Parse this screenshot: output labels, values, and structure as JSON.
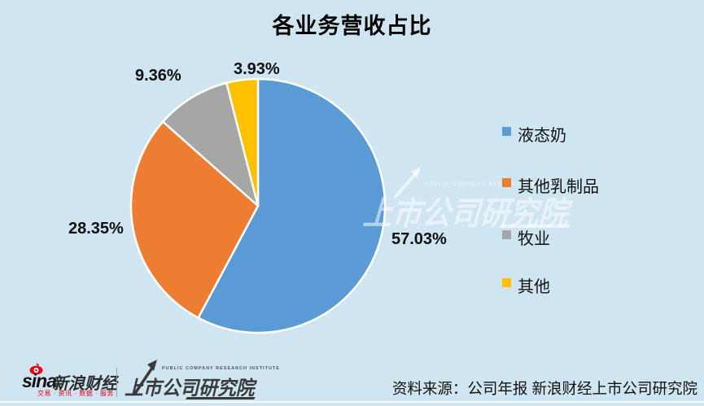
{
  "title": "各业务营收占比",
  "colors": {
    "background": "#d0e5f2",
    "slice_blue": "#5B9BD5",
    "slice_orange": "#ED7D31",
    "slice_gray": "#A6A6A6",
    "slice_yellow": "#FFC000",
    "sina_red": "#e60012",
    "logo_dark": "#3a3a3a"
  },
  "chart_data": {
    "type": "pie",
    "title": "各业务营收占比",
    "categories": [
      "液态奶",
      "其他乳制品",
      "牧业",
      "其他"
    ],
    "values": [
      57.03,
      28.35,
      9.36,
      3.93
    ],
    "labels": [
      "57.03%",
      "28.35%",
      "9.36%",
      "3.93%"
    ],
    "colors": [
      "#5B9BD5",
      "#ED7D31",
      "#A6A6A6",
      "#FFC000"
    ],
    "start_angle_deg": 0,
    "direction": "clockwise",
    "legend_position": "right",
    "slice_border_color": "#ffffff"
  },
  "watermark": {
    "text": "上市公司研究院",
    "subtitle": "PUBLIC COMPANY RESEARCH INSTITUTE"
  },
  "footer": {
    "sina": {
      "brand": "sina",
      "name": "新浪财经",
      "tagline": "交易 · 资讯 · 数据 · 服务"
    },
    "institute": {
      "subtitle": "PUBLIC COMPANY RESEARCH INSTITUTE",
      "name": "上市公司研究院"
    },
    "source": "资料来源：公司年报 新浪财经上市公司研究院"
  }
}
